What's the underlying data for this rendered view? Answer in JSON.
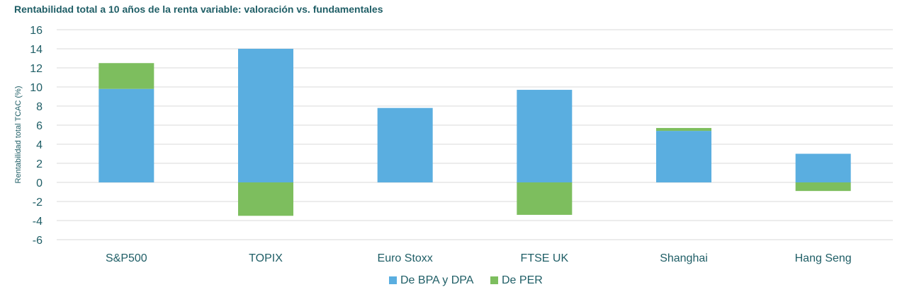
{
  "chart_data": {
    "type": "bar",
    "stacked": true,
    "title": "Rentabilidad total a 10 años de la renta variable: valoración vs. fundamentales",
    "ylabel": "Rentabilidad total TCAC (%)",
    "xlabel": "",
    "ylim": [
      -6,
      16
    ],
    "yticks": [
      16,
      14,
      12,
      10,
      8,
      6,
      4,
      2,
      0,
      -2,
      -4,
      -6
    ],
    "grid": true,
    "legend_position": "bottom",
    "categories": [
      "S&P500",
      "TOPIX",
      "Euro Stoxx",
      "FTSE UK",
      "Shanghai",
      "Hang Seng"
    ],
    "series": [
      {
        "name": "De BPA y DPA",
        "color": "#5aaee0",
        "values": [
          9.8,
          14.0,
          7.8,
          9.7,
          5.4,
          3.0
        ]
      },
      {
        "name": "De PER",
        "color": "#7dbe5e",
        "values": [
          2.7,
          -3.5,
          0.0,
          -3.4,
          0.3,
          -0.9
        ]
      }
    ]
  }
}
